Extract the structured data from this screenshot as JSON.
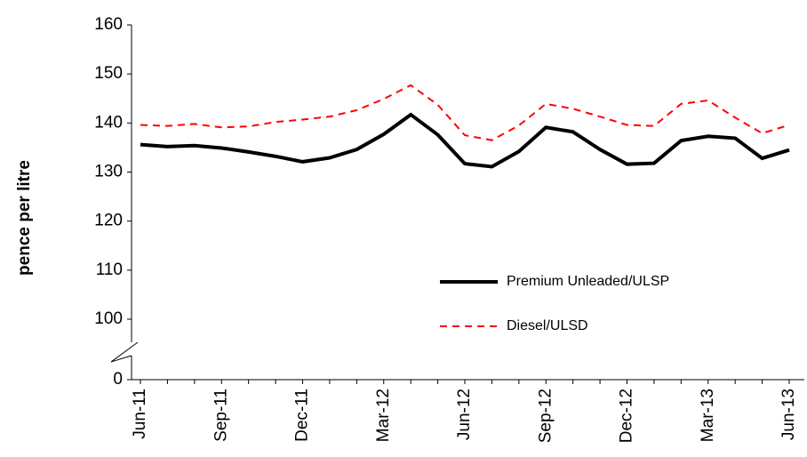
{
  "chart_data": {
    "type": "line",
    "y_label": "pence per litre",
    "categories": [
      "Jun-11",
      null,
      null,
      "Sep-11",
      null,
      null,
      "Dec-11",
      null,
      null,
      "Mar-12",
      null,
      null,
      "Jun-12",
      null,
      null,
      "Sep-12",
      null,
      null,
      "Dec-12",
      null,
      null,
      "Mar-13",
      null,
      null,
      "Jun-13"
    ],
    "series": [
      {
        "name": "Premium Unleaded/ULSP",
        "color": "#000000",
        "dash": "solid",
        "values": [
          135.6,
          135.2,
          135.4,
          134.9,
          134.1,
          133.2,
          132.1,
          132.9,
          134.6,
          137.7,
          141.7,
          137.6,
          131.7,
          131.1,
          134.2,
          139.1,
          138.2,
          134.6,
          131.6,
          131.8,
          136.4,
          137.3,
          136.9,
          132.8,
          134.5
        ]
      },
      {
        "name": "Diesel/ULSD",
        "color": "#ff0000",
        "dash": "dashed",
        "values": [
          139.6,
          139.4,
          139.8,
          139.1,
          139.3,
          140.2,
          140.7,
          141.3,
          142.6,
          144.9,
          147.7,
          143.7,
          137.5,
          136.5,
          139.5,
          143.9,
          142.9,
          141.3,
          139.6,
          139.4,
          143.9,
          144.6,
          141.1,
          137.9,
          139.6
        ]
      }
    ],
    "ylim": [
      0,
      160
    ],
    "yticks": [
      0,
      100,
      110,
      120,
      130,
      140,
      150,
      160
    ],
    "axis_break": true,
    "grid": false,
    "legend": "inside-right"
  }
}
